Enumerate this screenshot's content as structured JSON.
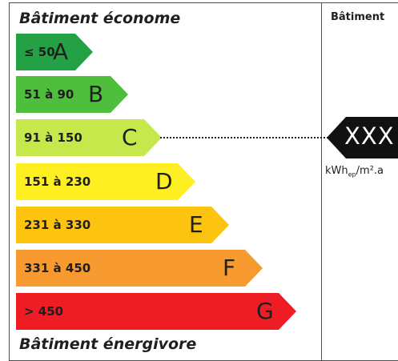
{
  "header": {
    "top": "Bâtiment économe",
    "bottom": "Bâtiment énergivore",
    "right": "Bâtiment"
  },
  "classes": [
    {
      "range": "≤ 50",
      "letter": "A",
      "color": "#23a144"
    },
    {
      "range": "51 à 90",
      "letter": "B",
      "color": "#4fbe3d"
    },
    {
      "range": "91 à 150",
      "letter": "C",
      "color": "#c7e84b"
    },
    {
      "range": "151 à 230",
      "letter": "D",
      "color": "#fdef22"
    },
    {
      "range": "231 à 330",
      "letter": "E",
      "color": "#fcc30f"
    },
    {
      "range": "331 à 450",
      "letter": "F",
      "color": "#f79a2f"
    },
    {
      "range": "> 450",
      "letter": "G",
      "color": "#ee1c25"
    }
  ],
  "indicator": {
    "value": "XXX",
    "active_class": "C",
    "unit_prefix": "kWh",
    "unit_sub": "ep",
    "unit_suffix": "/m².a"
  }
}
